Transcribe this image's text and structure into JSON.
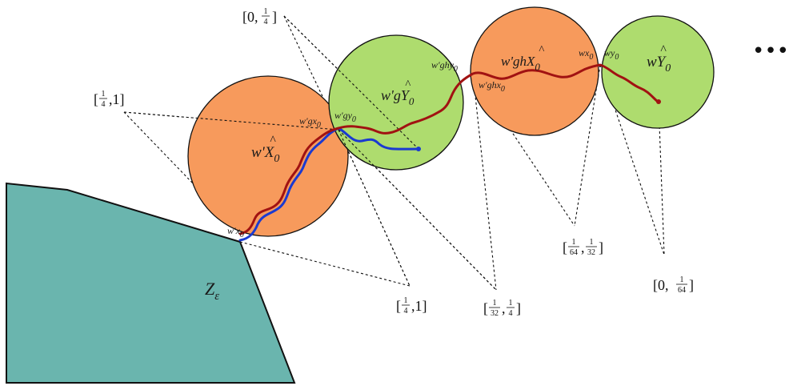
{
  "colors": {
    "orange": "#f79a5c",
    "green": "#aedc6e",
    "teal": "#6ab5ae",
    "red_path": "#a11212",
    "blue_path": "#1a3ad1"
  },
  "region": {
    "label": "Z",
    "subscript": "ε"
  },
  "ellipsis": "•••",
  "circles": [
    {
      "id": "c1",
      "color": "orange",
      "main": {
        "base": "w'X",
        "hat": "^",
        "sub": "0"
      },
      "points": [
        {
          "base": "w'x",
          "sub": "0"
        },
        {
          "base": "w'gx",
          "sub": "0"
        }
      ]
    },
    {
      "id": "c2",
      "color": "green",
      "main": {
        "base": "w'gY",
        "hat": "^",
        "sub": "0"
      },
      "points": [
        {
          "base": "w'gy",
          "sub": "0"
        },
        {
          "base": "w'ghy",
          "sub": "0"
        }
      ]
    },
    {
      "id": "c3",
      "color": "orange",
      "main": {
        "base": "w'ghX",
        "hat": "^",
        "sub": "0"
      },
      "points": [
        {
          "base": "w'ghx",
          "sub": "0"
        },
        {
          "base": "wx",
          "sub": "0"
        }
      ]
    },
    {
      "id": "c4",
      "color": "green",
      "main": {
        "base": "wY",
        "hat": "^",
        "sub": "0"
      },
      "points": [
        {
          "base": "wy",
          "sub": "0"
        }
      ]
    }
  ],
  "intervals": [
    {
      "id": "i1",
      "open": "[",
      "left": "0",
      "comma": ",",
      "num": "1",
      "den": "4",
      "close": "]"
    },
    {
      "id": "i2",
      "open": "[",
      "num": "1",
      "den": "4",
      "comma": ",",
      "right": "1",
      "close": "]"
    },
    {
      "id": "i3",
      "open": "[",
      "num": "1",
      "den": "4",
      "comma": ",",
      "right": "1",
      "close": "]"
    },
    {
      "id": "i4",
      "open": "[",
      "num": "1",
      "den": "32",
      "comma": ",",
      "num2": "1",
      "den2": "4",
      "close": "]"
    },
    {
      "id": "i5",
      "open": "[",
      "num": "1",
      "den": "64",
      "comma": ",",
      "num2": "1",
      "den2": "32",
      "close": "]"
    },
    {
      "id": "i6",
      "open": "[",
      "left": "0",
      "comma": ",",
      "num": "1",
      "den": "64",
      "close": "]"
    }
  ]
}
